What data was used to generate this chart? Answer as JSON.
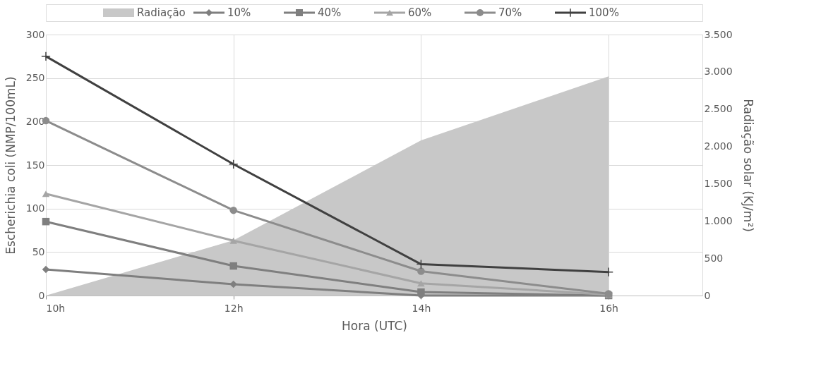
{
  "chart_data": {
    "type": "line",
    "xlabel": "Hora (UTC)",
    "ylabel": "Escherichia coli  (NMP/100mL)",
    "y2label": "Radiação solar (KJ/m²)",
    "x": [
      10,
      12,
      14,
      16
    ],
    "xlim": [
      10,
      17
    ],
    "xticks": [
      {
        "value": 10,
        "label": "10h"
      },
      {
        "value": 12,
        "label": "12h"
      },
      {
        "value": 14,
        "label": "14h"
      },
      {
        "value": 16,
        "label": "16h"
      }
    ],
    "ylim": [
      0,
      300
    ],
    "yticks": [
      0,
      50,
      100,
      150,
      200,
      250,
      300
    ],
    "y2lim": [
      0,
      3500
    ],
    "y2ticks": [
      0,
      500,
      {
        "value": 1000,
        "label": "1.000"
      },
      {
        "value": 1500,
        "label": "1.500"
      },
      {
        "value": 2000,
        "label": "2.000"
      },
      {
        "value": 2500,
        "label": "2.500"
      },
      {
        "value": 3000,
        "label": "3.000"
      },
      {
        "value": 3500,
        "label": "3.500"
      }
    ],
    "grid": true,
    "legend": "top",
    "line_style": "solid",
    "series": [
      {
        "name": "Radiação",
        "type": "area",
        "axis": "y2",
        "color": "#c8c8c8",
        "values": [
          0,
          740,
          2080,
          2940
        ]
      },
      {
        "name": "10%",
        "type": "line",
        "marker": "diamond",
        "color": "#7f7f7f",
        "values": [
          30,
          13,
          0,
          0
        ]
      },
      {
        "name": "40%",
        "type": "line",
        "marker": "square",
        "color": "#7f7f7f",
        "values": [
          85,
          34,
          4,
          0
        ]
      },
      {
        "name": "60%",
        "type": "line",
        "marker": "triangle",
        "color": "#a5a5a5",
        "values": [
          117,
          63,
          14,
          1
        ]
      },
      {
        "name": "70%",
        "type": "line",
        "marker": "circle",
        "color": "#8c8c8c",
        "values": [
          201,
          98,
          28,
          2
        ]
      },
      {
        "name": "100%",
        "type": "line",
        "marker": "cross",
        "color": "#404040",
        "values": [
          275,
          151,
          36,
          27
        ]
      }
    ]
  }
}
